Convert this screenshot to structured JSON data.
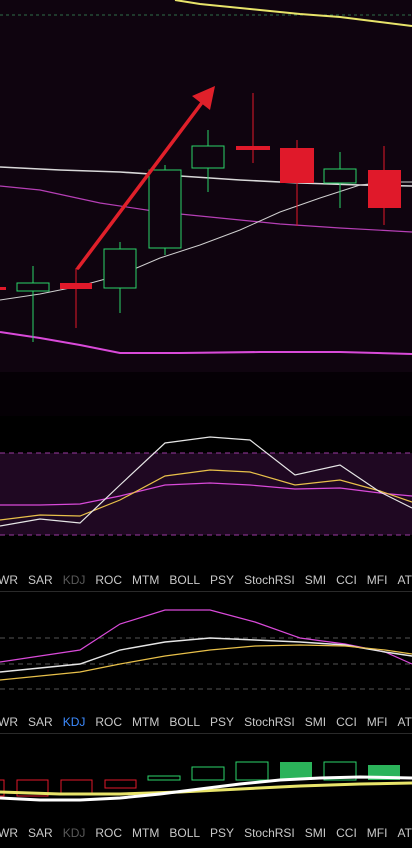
{
  "colors": {
    "main_bg": "#0f040f",
    "bull_candle": "#2bd46a",
    "bear_candle": "#e0192a",
    "boll_upper": "#e8e46a",
    "boll_mid": "#d8d8d8",
    "ma_magenta": "#d94ad9",
    "arrow": "#e0202a",
    "tab_active": "#3d8bff",
    "tab_normal": "#c9c9c9",
    "tab_disabled": "#5a5a5a"
  },
  "tabbars": [
    {
      "tabs": [
        {
          "label": "WR",
          "state": "normal"
        },
        {
          "label": "SAR",
          "state": "normal"
        },
        {
          "label": "KDJ",
          "state": "disabled"
        },
        {
          "label": "ROC",
          "state": "normal"
        },
        {
          "label": "MTM",
          "state": "normal"
        },
        {
          "label": "BOLL",
          "state": "normal"
        },
        {
          "label": "PSY",
          "state": "normal"
        },
        {
          "label": "StochRSI",
          "state": "normal"
        },
        {
          "label": "SMI",
          "state": "normal"
        },
        {
          "label": "CCI",
          "state": "normal"
        },
        {
          "label": "MFI",
          "state": "normal"
        },
        {
          "label": "ATR",
          "state": "normal"
        }
      ]
    },
    {
      "tabs": [
        {
          "label": "WR",
          "state": "normal"
        },
        {
          "label": "SAR",
          "state": "normal"
        },
        {
          "label": "KDJ",
          "state": "active"
        },
        {
          "label": "ROC",
          "state": "normal"
        },
        {
          "label": "MTM",
          "state": "normal"
        },
        {
          "label": "BOLL",
          "state": "normal"
        },
        {
          "label": "PSY",
          "state": "normal"
        },
        {
          "label": "StochRSI",
          "state": "normal"
        },
        {
          "label": "SMI",
          "state": "normal"
        },
        {
          "label": "CCI",
          "state": "normal"
        },
        {
          "label": "MFI",
          "state": "normal"
        },
        {
          "label": "ATR",
          "state": "normal"
        }
      ]
    },
    {
      "tabs": [
        {
          "label": "WR",
          "state": "normal"
        },
        {
          "label": "SAR",
          "state": "normal"
        },
        {
          "label": "KDJ",
          "state": "disabled"
        },
        {
          "label": "ROC",
          "state": "normal"
        },
        {
          "label": "MTM",
          "state": "normal"
        },
        {
          "label": "BOLL",
          "state": "normal"
        },
        {
          "label": "PSY",
          "state": "normal"
        },
        {
          "label": "StochRSI",
          "state": "normal"
        },
        {
          "label": "SMI",
          "state": "normal"
        },
        {
          "label": "CCI",
          "state": "normal"
        },
        {
          "label": "MFI",
          "state": "normal"
        },
        {
          "label": "ATR",
          "state": "normal"
        }
      ]
    }
  ]
}
